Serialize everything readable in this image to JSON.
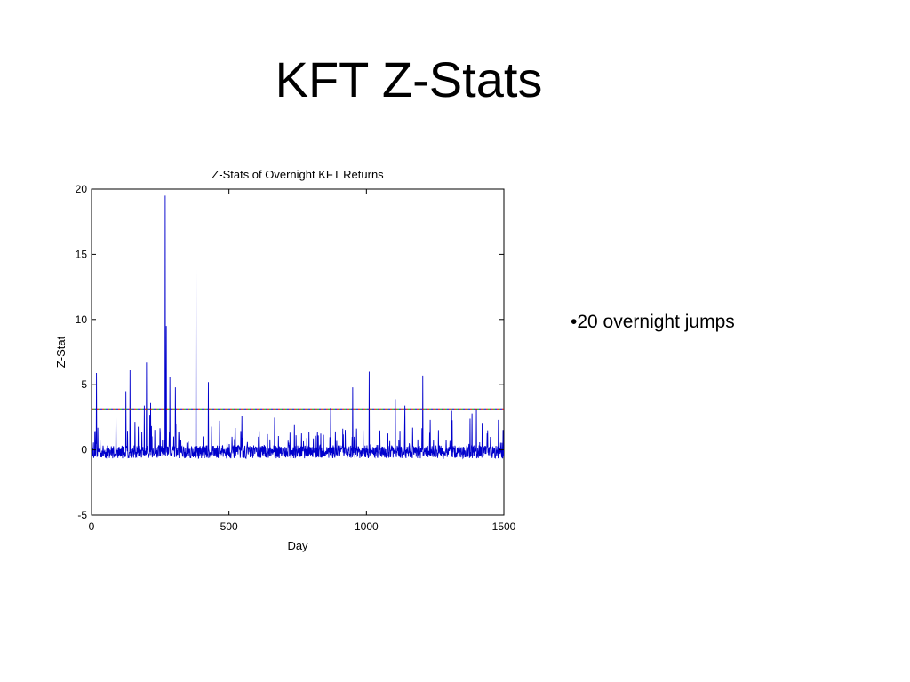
{
  "slide": {
    "title": "KFT Z-Stats",
    "bullet": "•20 overnight jumps"
  },
  "chart_data": {
    "type": "line",
    "title": "Z-Stats of Overnight KFT Returns",
    "xlabel": "Day",
    "ylabel": "Z-Stat",
    "xlim": [
      0,
      1500
    ],
    "ylim": [
      -5,
      20
    ],
    "xticks": [
      0,
      500,
      1000,
      1500
    ],
    "yticks": [
      -5,
      0,
      5,
      10,
      15,
      20
    ],
    "grid": false,
    "series": [
      {
        "color": "#0000cc",
        "spikes": [
          {
            "day": 18,
            "value": 5.9
          },
          {
            "day": 125,
            "value": 4.5
          },
          {
            "day": 140,
            "value": 6.1
          },
          {
            "day": 200,
            "value": 6.7
          },
          {
            "day": 215,
            "value": 3.6
          },
          {
            "day": 268,
            "value": 19.5
          },
          {
            "day": 272,
            "value": 9.5
          },
          {
            "day": 285,
            "value": 5.6
          },
          {
            "day": 305,
            "value": 4.8
          },
          {
            "day": 380,
            "value": 13.9
          },
          {
            "day": 425,
            "value": 5.2
          },
          {
            "day": 870,
            "value": 3.2
          },
          {
            "day": 950,
            "value": 4.8
          },
          {
            "day": 1010,
            "value": 6.0
          },
          {
            "day": 1105,
            "value": 3.9
          },
          {
            "day": 1140,
            "value": 3.4
          },
          {
            "day": 1205,
            "value": 5.7
          },
          {
            "day": 1310,
            "value": 3.0
          },
          {
            "day": 1400,
            "value": 3.1
          },
          {
            "day": 1480,
            "value": 2.3
          }
        ]
      },
      {
        "type": "threshold",
        "value": 3.09,
        "colors": [
          "#cc0000",
          "#009900",
          "#0000cc"
        ]
      }
    ]
  }
}
